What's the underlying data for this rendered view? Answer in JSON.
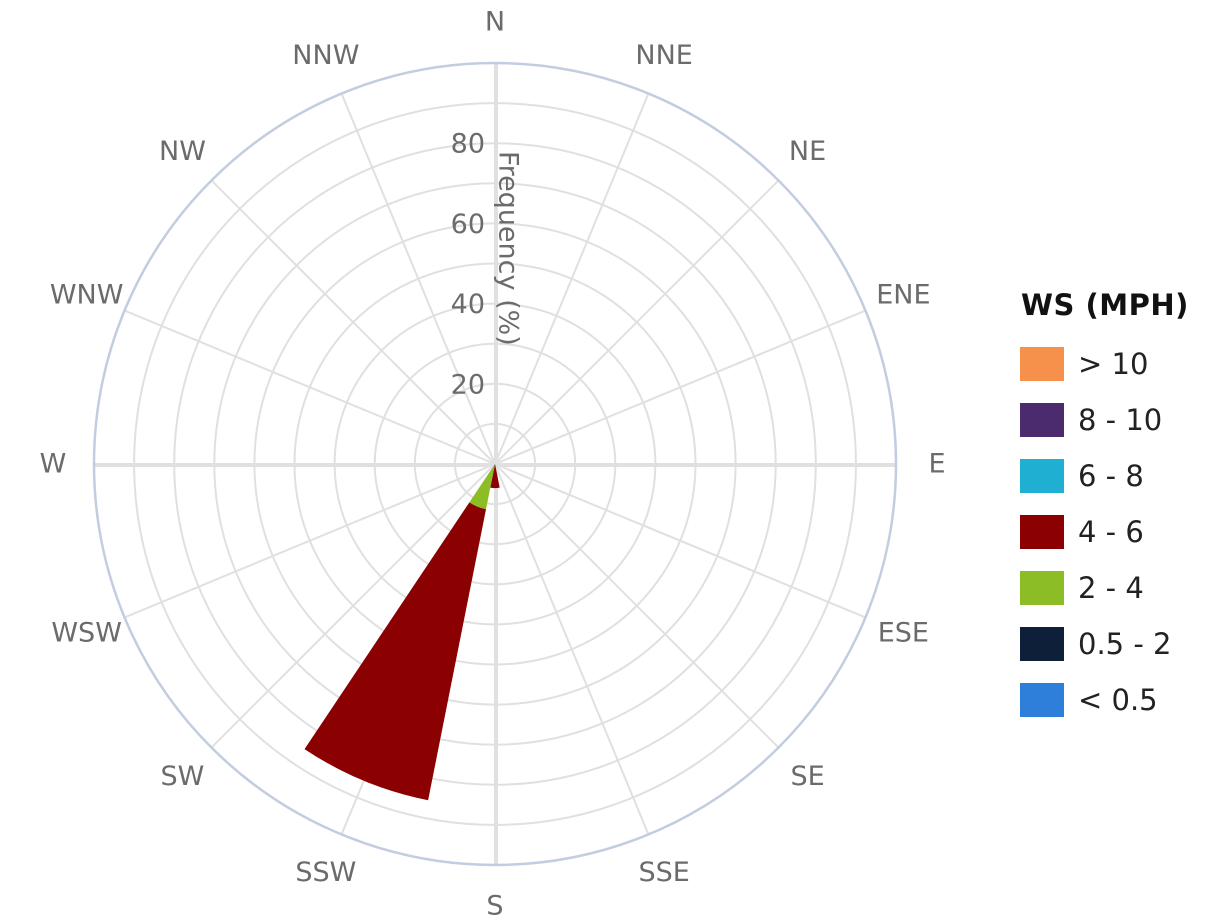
{
  "chart_data": {
    "type": "wind_rose",
    "radial_axis": {
      "title": "Frequency (%)",
      "range": [
        0,
        100
      ],
      "ticks": [
        20,
        40,
        60,
        80
      ],
      "grid": true
    },
    "directions": [
      "N",
      "NNE",
      "NE",
      "ENE",
      "E",
      "ESE",
      "SE",
      "SSE",
      "S",
      "SSW",
      "SW",
      "WSW",
      "W",
      "WNW",
      "NW",
      "NNW"
    ],
    "legend": {
      "title": "WS (MPH)",
      "placement": "right",
      "bins": [
        {
          "label": "> 10",
          "color": "#f5914a"
        },
        {
          "label": "8 - 10",
          "color": "#4b2a6e"
        },
        {
          "label": "6 - 8",
          "color": "#1fafd2"
        },
        {
          "label": "4 - 6",
          "color": "#8b0000"
        },
        {
          "label": "2 - 4",
          "color": "#8cbd24"
        },
        {
          "label": "0.5 - 2",
          "color": "#0e1f3a"
        },
        {
          "label": "< 0.5",
          "color": "#2e7fd9"
        }
      ]
    },
    "series": [
      {
        "name": "< 0.5",
        "values": [
          0,
          0,
          0,
          0,
          0,
          0,
          0,
          0,
          0,
          0.5,
          0,
          0,
          0,
          0,
          0,
          0
        ]
      },
      {
        "name": "0.5 - 2",
        "values": [
          0,
          0,
          0,
          0,
          0,
          0,
          0,
          0,
          0,
          0,
          0,
          0,
          0,
          0,
          0,
          0
        ]
      },
      {
        "name": "2 - 4",
        "values": [
          0,
          0,
          0,
          0,
          0,
          0,
          0,
          0,
          0,
          11,
          0,
          0,
          0,
          0,
          0,
          0
        ]
      },
      {
        "name": "4 - 6",
        "values": [
          0,
          0,
          0,
          0,
          0,
          0,
          0,
          0,
          6,
          74,
          0,
          0,
          0,
          0,
          0,
          0
        ]
      },
      {
        "name": "6 - 8",
        "values": [
          0,
          0,
          0,
          0,
          0,
          0,
          0,
          0,
          0,
          0,
          0,
          0,
          0,
          0,
          0,
          0
        ]
      },
      {
        "name": "8 - 10",
        "values": [
          0,
          0,
          0,
          0,
          0,
          0,
          0,
          0,
          0,
          0,
          0,
          0,
          0,
          0,
          0,
          0
        ]
      },
      {
        "name": "> 10",
        "values": [
          0,
          0,
          0,
          0,
          0,
          0,
          0,
          0,
          0,
          0,
          0,
          0,
          0,
          0,
          0,
          0
        ]
      }
    ]
  }
}
